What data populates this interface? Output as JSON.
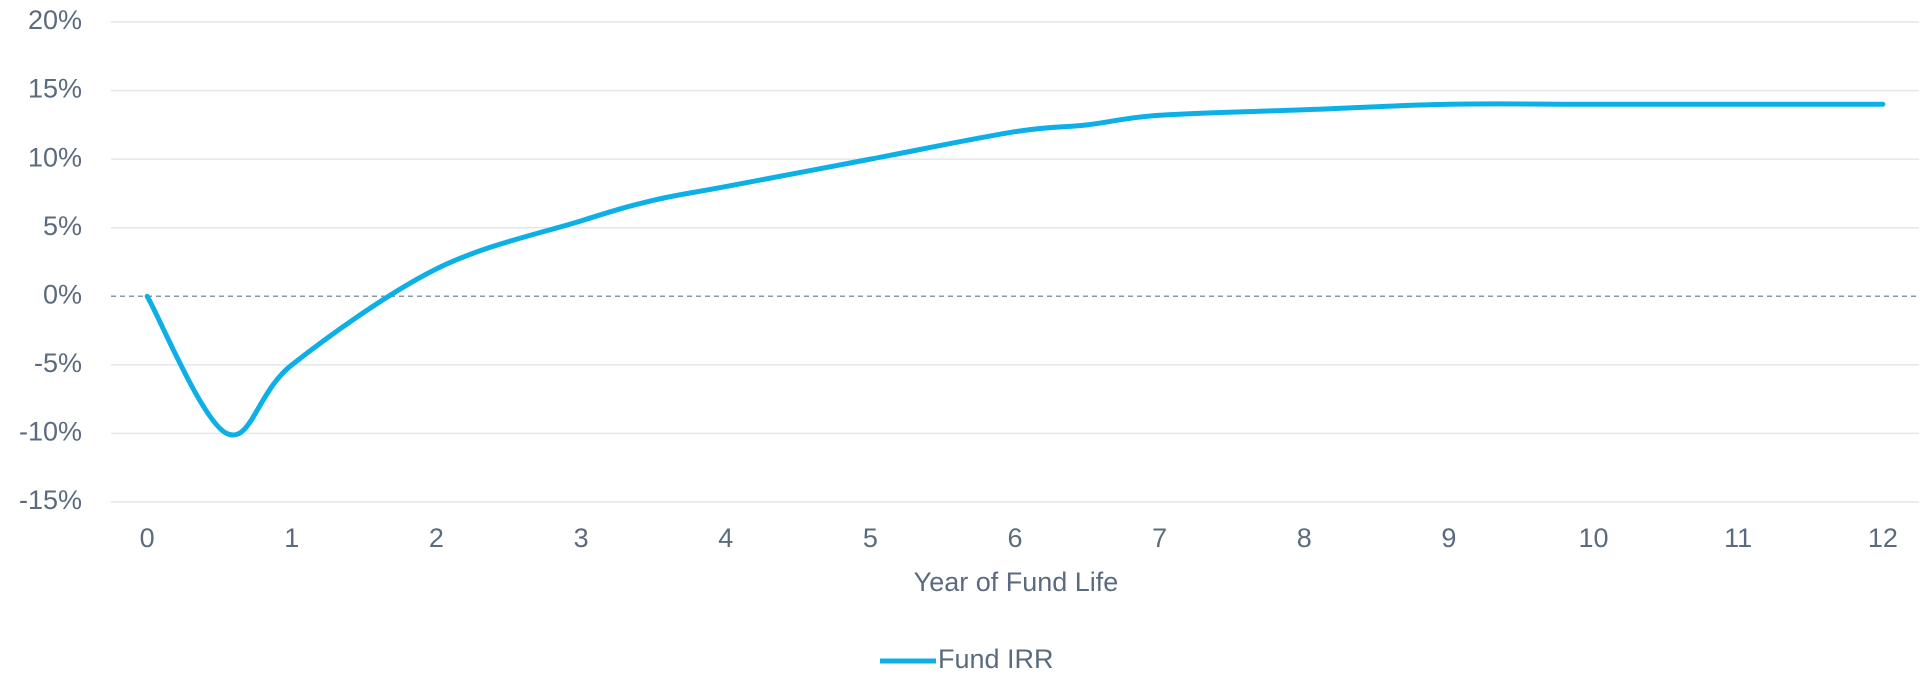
{
  "chart_data": {
    "type": "line",
    "x_label": "Year of Fund Life",
    "x": [
      0,
      0.55,
      1,
      2,
      3,
      3.5,
      4,
      5,
      6,
      6.5,
      7,
      8,
      9,
      10,
      11,
      12
    ],
    "series": [
      {
        "name": "Fund IRR",
        "color": "#0cb0e6",
        "values": [
          0,
          -10,
          -5,
          2,
          5.5,
          7,
          8,
          10,
          12,
          12.5,
          13.2,
          13.6,
          14,
          14,
          14,
          14
        ]
      }
    ],
    "xlim": [
      -0.25,
      12.25
    ],
    "xticks": [
      0,
      1,
      2,
      3,
      4,
      5,
      6,
      7,
      8,
      9,
      10,
      11,
      12
    ],
    "ylim": [
      -15,
      20
    ],
    "yticks": [
      {
        "value": -15,
        "label": "-15%"
      },
      {
        "value": -10,
        "label": "-10%"
      },
      {
        "value": -5,
        "label": "-5%"
      },
      {
        "value": 0,
        "label": "0%"
      },
      {
        "value": 5,
        "label": "5%"
      },
      {
        "value": 10,
        "label": "10%"
      },
      {
        "value": 15,
        "label": "15%"
      },
      {
        "value": 20,
        "label": "20%"
      }
    ],
    "grid": true,
    "legend": "bottom"
  }
}
